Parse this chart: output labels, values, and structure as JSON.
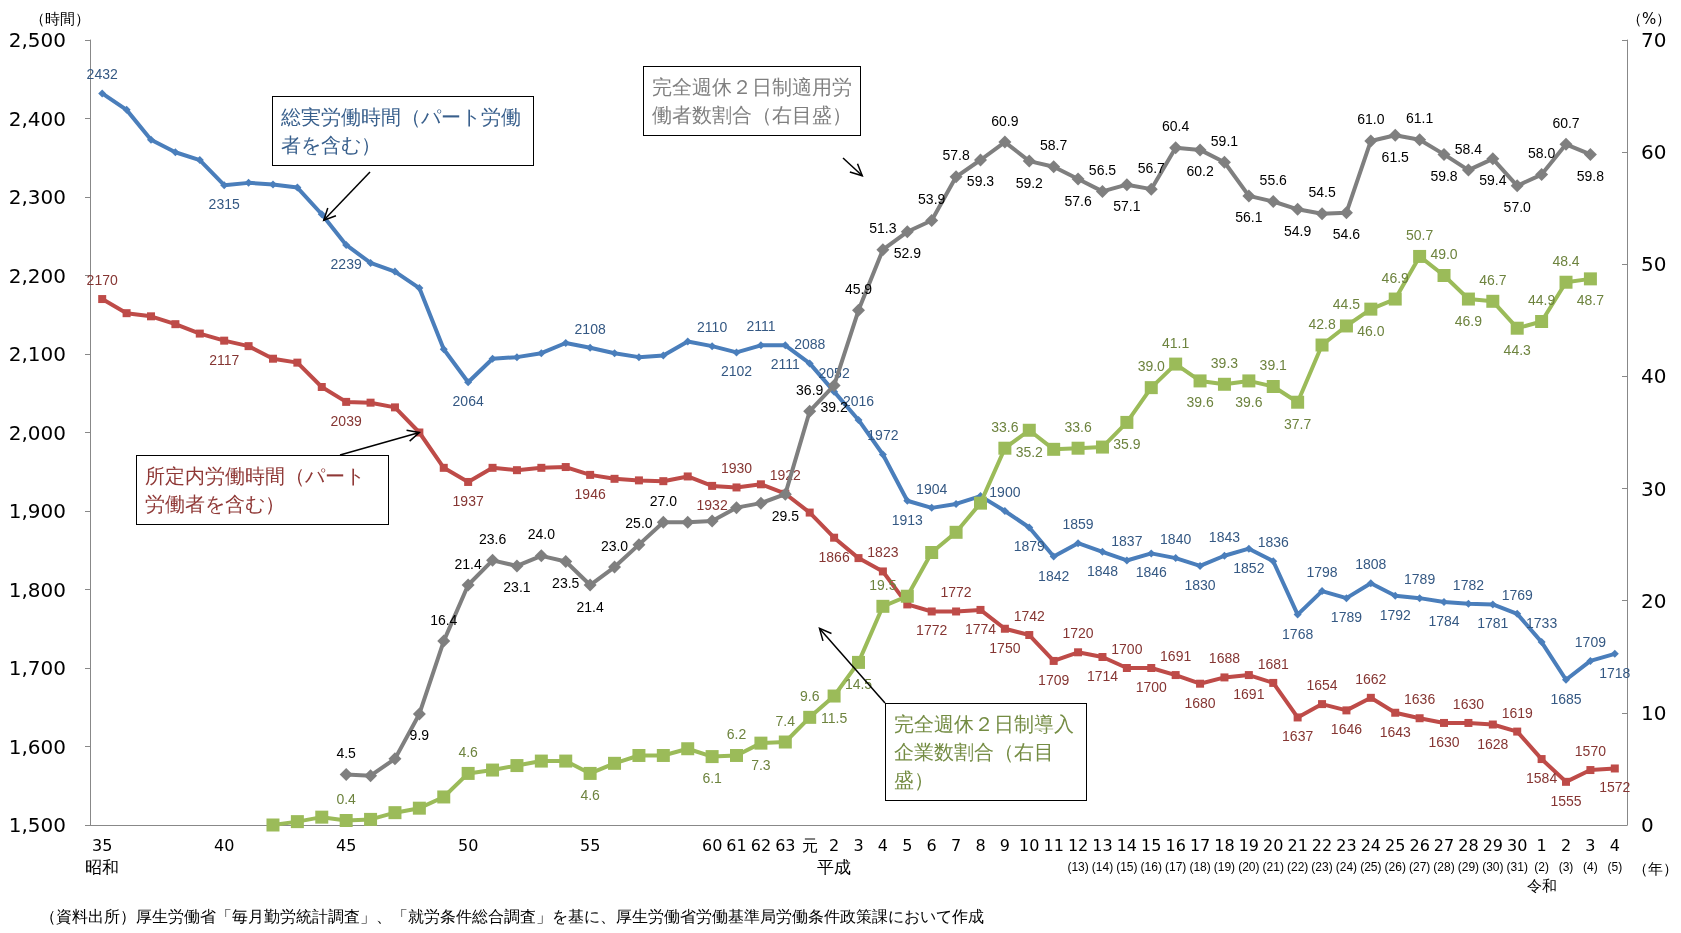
{
  "chart_data": {
    "type": "line",
    "xlabel": "（年）",
    "ylabel": "（時間）",
    "y2label": "（%）",
    "categories": [
      "35",
      null,
      null,
      null,
      null,
      "40",
      null,
      null,
      null,
      null,
      "45",
      null,
      null,
      null,
      null,
      "50",
      null,
      null,
      null,
      null,
      "55",
      null,
      null,
      null,
      null,
      "60",
      "61",
      "62",
      "63",
      "元",
      "2",
      "3",
      "4",
      "5",
      "6",
      "7",
      "8",
      "9",
      "10",
      "11",
      "12\n(13)",
      "13\n(14)",
      "14\n(15)",
      "15\n(16)",
      "16\n(17)",
      "17\n(18)",
      "18\n(19)",
      "19\n(20)",
      "20\n(21)",
      "21\n(22)",
      "22\n(23)",
      "23\n(24)",
      "24\n(25)",
      "25\n(26)",
      "26\n(27)",
      "27\n(28)",
      "28\n(29)",
      "29\n(30)",
      "30\n(31)",
      "1\n(2)",
      "2\n(3)",
      "3\n(4)",
      "4\n(5)"
    ],
    "ylim": [
      1500,
      2500
    ],
    "yticks": [
      {
        "value": 1500,
        "label": "1,500"
      },
      {
        "value": 1600,
        "label": "1,600"
      },
      {
        "value": 1700,
        "label": "1,700"
      },
      {
        "value": 1800,
        "label": "1,800"
      },
      {
        "value": 1900,
        "label": "1,900"
      },
      {
        "value": 2000,
        "label": "2,000"
      },
      {
        "value": 2100,
        "label": "2,100"
      },
      {
        "value": 2200,
        "label": "2,200"
      },
      {
        "value": 2300,
        "label": "2,300"
      },
      {
        "value": 2400,
        "label": "2,400"
      },
      {
        "value": 2500,
        "label": "2,500"
      }
    ],
    "y2lim": [
      0,
      70
    ],
    "y2ticks": [
      0,
      10,
      20,
      30,
      40,
      50,
      60,
      70
    ],
    "line_style": "solid",
    "series": [
      {
        "name": "総実労働時間（パート労働者を含む）",
        "color": "#4a7ebb",
        "marker": "diamond",
        "values": [
          2432,
          2411,
          2373,
          2357,
          2347,
          2315,
          2318,
          2316,
          2312,
          2278,
          2239,
          2216,
          2205,
          2184,
          2106,
          2064,
          2094,
          2096,
          2101,
          2114,
          2108,
          2101,
          2096,
          2098,
          2116,
          2110,
          2102,
          2111,
          2111,
          2088,
          2052,
          2016,
          1972,
          1913,
          1904,
          1909,
          1919,
          1900,
          1879,
          1842,
          1859,
          1848,
          1837,
          1846,
          1840,
          1830,
          1843,
          1852,
          1836,
          1768,
          1798,
          1789,
          1808,
          1792,
          1789,
          1784,
          1782,
          1781,
          1769,
          1733,
          1685,
          1709,
          1718
        ],
        "value_labels": [
          "2432",
          null,
          null,
          null,
          null,
          "2315",
          null,
          null,
          null,
          null,
          "2239",
          null,
          null,
          null,
          null,
          "2064",
          null,
          null,
          null,
          null,
          "2108",
          null,
          null,
          null,
          null,
          "2110",
          "2102",
          "2111",
          "2111",
          "2088",
          "2052",
          "2016",
          "1972",
          "1913",
          "1904",
          null,
          null,
          "1900",
          "1879",
          "1842",
          "1859",
          "1848",
          "1837",
          "1846",
          "1840",
          "1830",
          "1843",
          "1852",
          "1836",
          "1768",
          "1798",
          "1789",
          "1808",
          "1792",
          "1789",
          "1784",
          "1782",
          "1781",
          "1769",
          "1733",
          "1685",
          "1709",
          "1718"
        ]
      },
      {
        "name": "所定内労働時間（パート労働者を含む）",
        "color": "#be4b48",
        "marker": "square",
        "values": [
          2170,
          2152,
          2148,
          2138,
          2126,
          2117,
          2110,
          2094,
          2089,
          2058,
          2039,
          2038,
          2032,
          2000,
          1955,
          1937,
          1955,
          1952,
          1955,
          1956,
          1946,
          1941,
          1939,
          1938,
          1944,
          1932,
          1930,
          1934,
          1922,
          1898,
          1866,
          1840,
          1823,
          1781,
          1772,
          1772,
          1774,
          1750,
          1742,
          1709,
          1720,
          1714,
          1700,
          1700,
          1691,
          1680,
          1688,
          1691,
          1681,
          1637,
          1654,
          1646,
          1662,
          1643,
          1636,
          1630,
          1630,
          1628,
          1619,
          1584,
          1555,
          1570,
          1572
        ],
        "value_labels": [
          "2170",
          null,
          null,
          null,
          null,
          "2117",
          null,
          null,
          null,
          null,
          "2039",
          null,
          null,
          null,
          null,
          "1937",
          null,
          null,
          null,
          null,
          "1946",
          null,
          null,
          null,
          null,
          "1932",
          "1930",
          null,
          "1922",
          null,
          "1866",
          null,
          "1823",
          null,
          "1772",
          "1772",
          "1774",
          "1750",
          "1742",
          "1709",
          "1720",
          "1714",
          "1700",
          "1700",
          "1691",
          "1680",
          "1688",
          "1691",
          "1681",
          "1637",
          "1654",
          "1646",
          "1662",
          "1643",
          "1636",
          "1630",
          "1630",
          "1628",
          "1619",
          "1584",
          "1555",
          "1570",
          "1572"
        ]
      },
      {
        "name": "完全週休２日制適用労働者数割合（右目盛）",
        "color": "#7f7f7f",
        "marker": "diamond",
        "axis": "y2",
        "values": [
          null,
          null,
          null,
          null,
          null,
          null,
          null,
          null,
          null,
          null,
          4.5,
          4.4,
          5.9,
          9.9,
          16.4,
          21.4,
          23.6,
          23.1,
          24.0,
          23.5,
          21.4,
          23.0,
          25.0,
          27.0,
          27.0,
          27.1,
          28.3,
          28.7,
          29.5,
          36.9,
          39.2,
          45.9,
          51.3,
          52.9,
          53.9,
          57.8,
          59.3,
          60.9,
          59.2,
          58.7,
          57.6,
          56.5,
          57.1,
          56.7,
          60.4,
          60.2,
          59.1,
          56.1,
          55.6,
          54.9,
          54.5,
          54.6,
          61.0,
          61.5,
          61.1,
          59.8,
          58.4,
          59.4,
          57.0,
          58.0,
          60.7,
          59.8,
          null
        ],
        "value_labels": [
          null,
          null,
          null,
          null,
          null,
          null,
          null,
          null,
          null,
          null,
          "4.5",
          null,
          null,
          "9.9",
          "16.4",
          "21.4",
          "23.6",
          "23.1",
          "24.0",
          "23.5",
          "21.4",
          "23.0",
          "25.0",
          "27.0",
          null,
          null,
          null,
          null,
          "29.5",
          "36.9",
          "39.2",
          "45.9",
          "51.3",
          "52.9",
          "53.9",
          "57.8",
          "59.3",
          "60.9",
          "59.2",
          "58.7",
          "57.6",
          "56.5",
          "57.1",
          "56.7",
          "60.4",
          "60.2",
          "59.1",
          "56.1",
          "55.6",
          "54.9",
          "54.5",
          "54.6",
          "61.0",
          "61.5",
          "61.1",
          "59.8",
          "58.4",
          "59.4",
          "57.0",
          "58.0",
          "60.7",
          "59.8",
          null
        ]
      },
      {
        "name": "完全週休２日制導入企業数割合（右目盛）",
        "color": "#9bbb59",
        "marker": "square",
        "axis": "y2",
        "values": [
          null,
          null,
          null,
          null,
          null,
          null,
          null,
          0.0,
          0.3,
          0.7,
          0.4,
          0.5,
          1.1,
          1.5,
          2.5,
          4.6,
          4.9,
          5.3,
          5.7,
          5.7,
          4.6,
          5.5,
          6.2,
          6.2,
          6.8,
          6.1,
          6.2,
          7.3,
          7.4,
          9.6,
          11.5,
          14.5,
          19.5,
          20.4,
          24.3,
          26.1,
          28.7,
          33.6,
          35.2,
          33.5,
          33.6,
          33.7,
          35.9,
          39.0,
          41.1,
          39.6,
          39.3,
          39.6,
          39.1,
          37.7,
          42.8,
          44.5,
          46.0,
          46.9,
          50.7,
          49.0,
          46.9,
          46.7,
          44.3,
          44.9,
          48.4,
          48.7,
          null
        ],
        "value_labels": [
          null,
          null,
          null,
          null,
          null,
          null,
          null,
          null,
          null,
          null,
          "0.4",
          null,
          null,
          null,
          null,
          "4.6",
          null,
          null,
          null,
          null,
          "4.6",
          null,
          null,
          null,
          null,
          "6.1",
          "6.2",
          "7.3",
          "7.4",
          "9.6",
          "11.5",
          "14.5",
          "19.5",
          null,
          null,
          null,
          null,
          "33.6",
          "35.2",
          null,
          "33.6",
          null,
          "35.9",
          "39.0",
          "41.1",
          "39.6",
          "39.3",
          "39.6",
          "39.1",
          "37.7",
          "42.8",
          "44.5",
          "46.0",
          "46.9",
          "50.7",
          "49.0",
          "46.9",
          "46.7",
          "44.3",
          "44.9",
          "48.4",
          "48.7",
          null
        ]
      }
    ],
    "annotations": [
      "昭和",
      "平成",
      "令和",
      "（資料出所）厚生労働省「毎月勤労統計調査」、「就労条件総合調査」を基に、厚生労働省労働基準局労働条件政策課において作成"
    ]
  }
}
